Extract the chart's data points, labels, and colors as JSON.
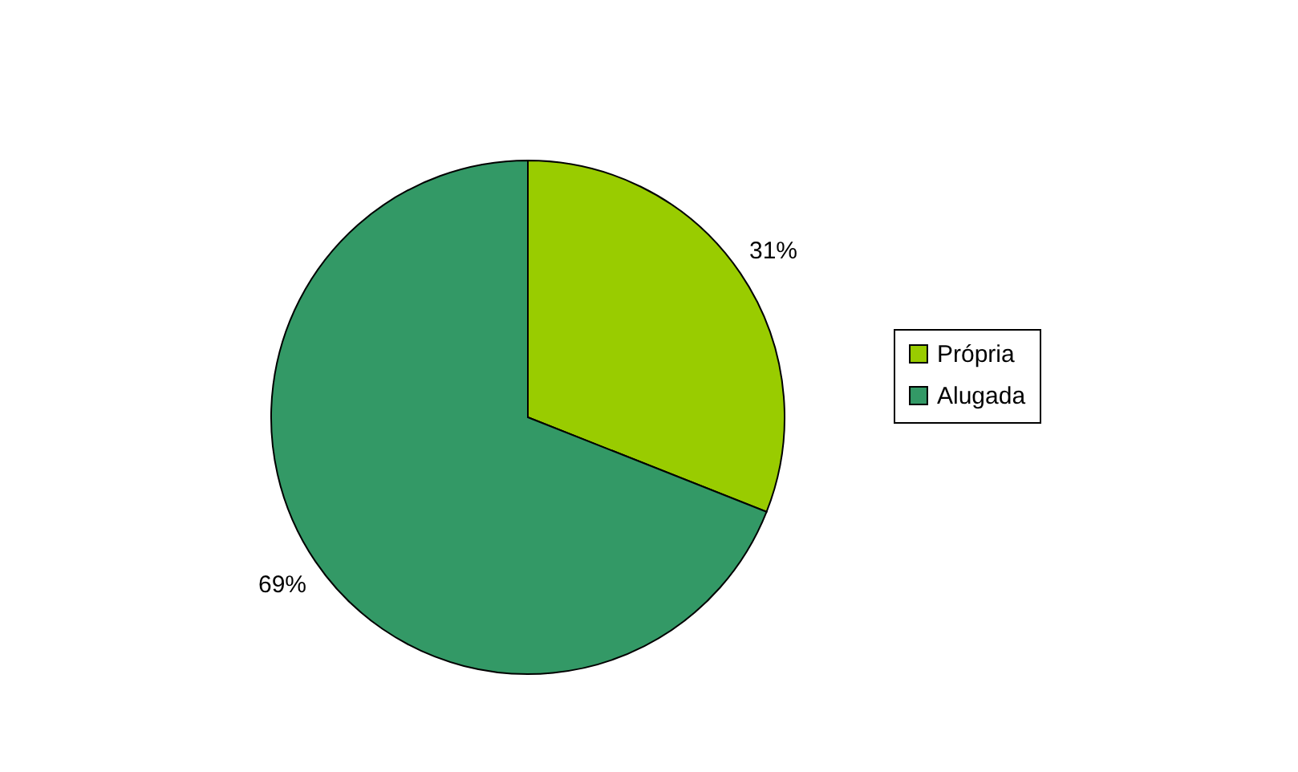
{
  "chart_data": {
    "type": "pie",
    "categories": [
      "Própria",
      "Alugada"
    ],
    "values": [
      31,
      69
    ],
    "colors": [
      "#99cc00",
      "#339966"
    ],
    "value_labels": [
      "31%",
      "69%"
    ],
    "legend": "right"
  }
}
